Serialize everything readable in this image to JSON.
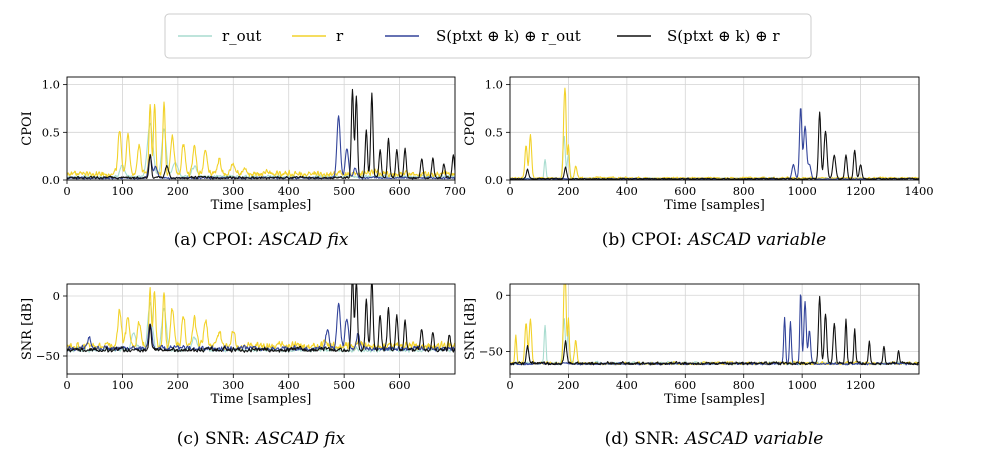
{
  "legend": {
    "items": [
      {
        "label": "r_out",
        "color": "#a8dccf"
      },
      {
        "label": "r",
        "color": "#f2d22b"
      },
      {
        "label": "S(ptxt ⊕ k) ⊕ r_out",
        "color": "#33449a"
      },
      {
        "label": "S(ptxt ⊕ k) ⊕ r",
        "color": "#111111"
      }
    ]
  },
  "chart_data": [
    {
      "type": "line",
      "caption": {
        "prefix": "(a) CPOI:",
        "dataset": "ASCAD fix"
      },
      "xlabel": "Time [samples]",
      "ylabel": "CPOI",
      "xlim": [
        0,
        700
      ],
      "ylim": [
        0,
        1.08
      ],
      "xticks": [
        0,
        100,
        200,
        300,
        400,
        500,
        600,
        700
      ],
      "yticks": [
        0.0,
        0.5,
        1.0
      ],
      "ytick_labels": [
        "0.0",
        "0.5",
        "1.0"
      ],
      "grid": true,
      "series": [
        {
          "name": "r_out",
          "color": "#a8dccf",
          "base": 0.02,
          "noise": 0.02,
          "peaks": [
            [
              150,
              0.55,
              5
            ],
            [
              175,
              0.5,
              4
            ],
            [
              195,
              0.15,
              5
            ],
            [
              100,
              0.12,
              4
            ],
            [
              230,
              0.1,
              5
            ]
          ]
        },
        {
          "name": "r",
          "color": "#f2d22b",
          "base": 0.03,
          "noise": 0.05,
          "peaks": [
            [
              95,
              0.45,
              3
            ],
            [
              110,
              0.4,
              3
            ],
            [
              130,
              0.3,
              3
            ],
            [
              150,
              0.74,
              2
            ],
            [
              158,
              0.74,
              2
            ],
            [
              175,
              0.75,
              2
            ],
            [
              190,
              0.4,
              3
            ],
            [
              210,
              0.3,
              3
            ],
            [
              230,
              0.28,
              3
            ],
            [
              250,
              0.25,
              3
            ],
            [
              275,
              0.15,
              3
            ],
            [
              300,
              0.1,
              3
            ],
            [
              320,
              0.07,
              3
            ]
          ]
        },
        {
          "name": "S(ptxt ⊕ k) ⊕ r_out",
          "color": "#33449a",
          "base": 0.01,
          "noise": 0.015,
          "peaks": [
            [
              150,
              0.22,
              3
            ],
            [
              160,
              0.12,
              3
            ],
            [
              490,
              0.65,
              3
            ],
            [
              505,
              0.3,
              3
            ],
            [
              520,
              0.1,
              3
            ]
          ]
        },
        {
          "name": "S(ptxt ⊕ k) ⊕ r",
          "color": "#111111",
          "base": 0.01,
          "noise": 0.02,
          "peaks": [
            [
              150,
              0.25,
              2
            ],
            [
              180,
              0.12,
              3
            ],
            [
              515,
              0.92,
              2
            ],
            [
              522,
              0.85,
              2
            ],
            [
              540,
              0.5,
              2
            ],
            [
              550,
              0.88,
              2
            ],
            [
              565,
              0.3,
              2
            ],
            [
              580,
              0.4,
              2
            ],
            [
              595,
              0.3,
              2
            ],
            [
              610,
              0.3,
              2
            ],
            [
              640,
              0.2,
              2
            ],
            [
              660,
              0.2,
              2
            ],
            [
              680,
              0.15,
              2
            ],
            [
              697,
              0.25,
              2
            ]
          ]
        }
      ]
    },
    {
      "type": "line",
      "caption": {
        "prefix": "(b) CPOI:",
        "dataset": "ASCAD variable"
      },
      "xlabel": "Time [samples]",
      "ylabel": "CPOI",
      "xlim": [
        0,
        1400
      ],
      "ylim": [
        0,
        1.08
      ],
      "xticks": [
        0,
        200,
        400,
        600,
        800,
        1000,
        1200,
        1400
      ],
      "yticks": [
        0.0,
        0.5,
        1.0
      ],
      "ytick_labels": [
        "0.0",
        "0.5",
        "1.0"
      ],
      "grid": true,
      "series": [
        {
          "name": "r_out",
          "color": "#a8dccf",
          "base": 0.01,
          "noise": 0.01,
          "peaks": [
            [
              120,
              0.2,
              3
            ],
            [
              185,
              0.45,
              4
            ],
            [
              200,
              0.25,
              4
            ]
          ]
        },
        {
          "name": "r",
          "color": "#f2d22b",
          "base": 0.01,
          "noise": 0.015,
          "peaks": [
            [
              55,
              0.35,
              4
            ],
            [
              70,
              0.45,
              4
            ],
            [
              185,
              0.6,
              3
            ],
            [
              190,
              0.72,
              3
            ],
            [
              200,
              0.35,
              3
            ],
            [
              225,
              0.12,
              4
            ]
          ]
        },
        {
          "name": "S(ptxt ⊕ k) ⊕ r_out",
          "color": "#33449a",
          "base": 0.005,
          "noise": 0.008,
          "peaks": [
            [
              970,
              0.15,
              5
            ],
            [
              995,
              0.75,
              4
            ],
            [
              1010,
              0.55,
              5
            ],
            [
              1025,
              0.15,
              5
            ]
          ]
        },
        {
          "name": "S(ptxt ⊕ k) ⊕ r",
          "color": "#111111",
          "base": 0.005,
          "noise": 0.01,
          "peaks": [
            [
              60,
              0.1,
              4
            ],
            [
              190,
              0.12,
              4
            ],
            [
              1060,
              0.7,
              4
            ],
            [
              1080,
              0.5,
              5
            ],
            [
              1110,
              0.25,
              5
            ],
            [
              1150,
              0.25,
              4
            ],
            [
              1180,
              0.3,
              4
            ],
            [
              1200,
              0.15,
              4
            ]
          ]
        }
      ]
    },
    {
      "type": "line",
      "caption": {
        "prefix": "(c) SNR:",
        "dataset": "ASCAD fix"
      },
      "xlabel": "Time [samples]",
      "ylabel": "SNR [dB]",
      "xlim": [
        0,
        700
      ],
      "ylim": [
        -65,
        10
      ],
      "xticks": [
        0,
        100,
        200,
        300,
        400,
        500,
        600
      ],
      "yticks": [
        -50,
        0
      ],
      "ytick_labels": [
        "−50",
        "0"
      ],
      "grid": true,
      "series": [
        {
          "name": "r_out",
          "color": "#a8dccf",
          "base": -47,
          "noise": 3,
          "peaks": [
            [
              150,
              40,
              4
            ],
            [
              175,
              35,
              4
            ],
            [
              120,
              15,
              4
            ],
            [
              230,
              10,
              5
            ]
          ]
        },
        {
          "name": "r",
          "color": "#f2d22b",
          "base": -45,
          "noise": 5,
          "peaks": [
            [
              95,
              30,
              3
            ],
            [
              110,
              25,
              3
            ],
            [
              130,
              20,
              3
            ],
            [
              150,
              46,
              2
            ],
            [
              158,
              46,
              2
            ],
            [
              175,
              47,
              2
            ],
            [
              190,
              30,
              3
            ],
            [
              210,
              25,
              3
            ],
            [
              230,
              22,
              3
            ],
            [
              250,
              20,
              3
            ],
            [
              275,
              12,
              3
            ],
            [
              300,
              10,
              3
            ]
          ]
        },
        {
          "name": "S(ptxt ⊕ k) ⊕ r_out",
          "color": "#33449a",
          "base": -46,
          "noise": 3,
          "peaks": [
            [
              150,
              22,
              3
            ],
            [
              40,
              10,
              3
            ],
            [
              470,
              15,
              3
            ],
            [
              490,
              38,
              3
            ],
            [
              505,
              25,
              3
            ],
            [
              525,
              12,
              3
            ]
          ]
        },
        {
          "name": "S(ptxt ⊕ k) ⊕ r",
          "color": "#111111",
          "base": -47,
          "noise": 3,
          "peaks": [
            [
              150,
              20,
              2
            ],
            [
              515,
              62,
              2
            ],
            [
              522,
              58,
              2
            ],
            [
              540,
              40,
              2
            ],
            [
              550,
              58,
              2
            ],
            [
              565,
              30,
              2
            ],
            [
              580,
              35,
              2
            ],
            [
              595,
              28,
              2
            ],
            [
              610,
              25,
              2
            ],
            [
              640,
              18,
              2
            ],
            [
              660,
              15,
              2
            ],
            [
              690,
              12,
              2
            ]
          ]
        }
      ]
    },
    {
      "type": "line",
      "caption": {
        "prefix": "(d) SNR:",
        "dataset": "ASCAD variable"
      },
      "xlabel": "Time [samples]",
      "ylabel": "SNR [dB]",
      "xlim": [
        0,
        1400
      ],
      "ylim": [
        -70,
        10
      ],
      "xticks": [
        0,
        200,
        400,
        600,
        800,
        1000,
        1200
      ],
      "yticks": [
        -50,
        0
      ],
      "ytick_labels": [
        "−50",
        "0"
      ],
      "grid": true,
      "series": [
        {
          "name": "r_out",
          "color": "#a8dccf",
          "base": -62,
          "noise": 2,
          "peaks": [
            [
              120,
              35,
              3
            ],
            [
              185,
              40,
              4
            ],
            [
              200,
              28,
              4
            ]
          ]
        },
        {
          "name": "r",
          "color": "#f2d22b",
          "base": -62,
          "noise": 2,
          "peaks": [
            [
              20,
              25,
              3
            ],
            [
              55,
              35,
              4
            ],
            [
              70,
              40,
              4
            ],
            [
              185,
              55,
              3
            ],
            [
              190,
              62,
              3
            ],
            [
              200,
              40,
              3
            ],
            [
              225,
              20,
              4
            ]
          ]
        },
        {
          "name": "S(ptxt ⊕ k) ⊕ r_out",
          "color": "#33449a",
          "base": -62,
          "noise": 1.5,
          "peaks": [
            [
              940,
              40,
              3
            ],
            [
              960,
              38,
              3
            ],
            [
              995,
              64,
              3
            ],
            [
              1010,
              55,
              4
            ],
            [
              1025,
              30,
              4
            ]
          ]
        },
        {
          "name": "S(ptxt ⊕ k) ⊕ r",
          "color": "#111111",
          "base": -62,
          "noise": 2,
          "peaks": [
            [
              60,
              15,
              4
            ],
            [
              190,
              20,
              4
            ],
            [
              1060,
              60,
              4
            ],
            [
              1080,
              45,
              4
            ],
            [
              1110,
              35,
              4
            ],
            [
              1150,
              40,
              3
            ],
            [
              1180,
              30,
              3
            ],
            [
              1230,
              20,
              3
            ],
            [
              1280,
              15,
              3
            ],
            [
              1330,
              12,
              3
            ]
          ]
        }
      ]
    }
  ]
}
